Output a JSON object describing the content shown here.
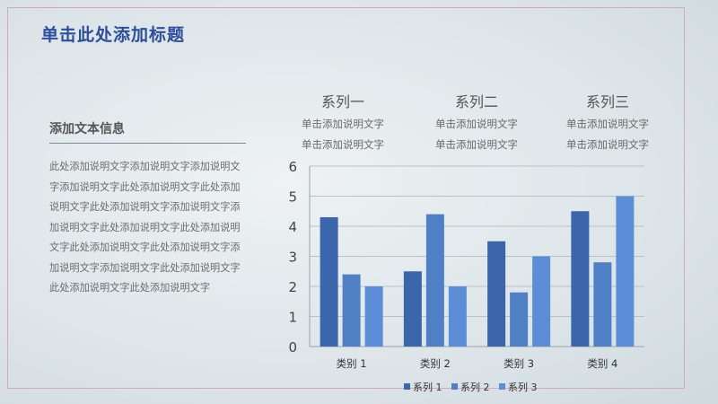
{
  "slide": {
    "title": "单击此处添加标题"
  },
  "info": {
    "heading": "添加文本信息",
    "body": "此处添加说明文字添加说明文字添加说明文字添加说明文字此处添加说明文字此处添加说明文字此处添加说明文字添加说明文字添加说明文字此处添加说明文字此处添加说明文字此处添加说明文字此处添加说明文字添加说明文字添加说明文字此处添加说明文字此处添加说明文字此处添加说明文字"
  },
  "series_heads": [
    {
      "title": "系列一",
      "line1": "单击添加说明文字",
      "line2": "单击添加说明文字"
    },
    {
      "title": "系列二",
      "line1": "单击添加说明文字",
      "line2": "单击添加说明文字"
    },
    {
      "title": "系列三",
      "line1": "单击添加说明文字",
      "line2": "单击添加说明文字"
    }
  ],
  "chart_data": {
    "type": "bar",
    "categories": [
      "类别 1",
      "类别 2",
      "类别 3",
      "类别 4"
    ],
    "series": [
      {
        "name": "系列 1",
        "values": [
          4.3,
          2.5,
          3.5,
          4.5
        ],
        "color": "#3b66ac"
      },
      {
        "name": "系列 2",
        "values": [
          2.4,
          4.4,
          1.8,
          2.8
        ],
        "color": "#4f80c6"
      },
      {
        "name": "系列 3",
        "values": [
          2.0,
          2.0,
          3.0,
          5.0
        ],
        "color": "#5b8ed6"
      }
    ],
    "yticks": [
      "0",
      "1",
      "2",
      "3",
      "4",
      "5",
      "6"
    ],
    "ylim": [
      0,
      6
    ],
    "grid": true,
    "legend": "bottom"
  }
}
